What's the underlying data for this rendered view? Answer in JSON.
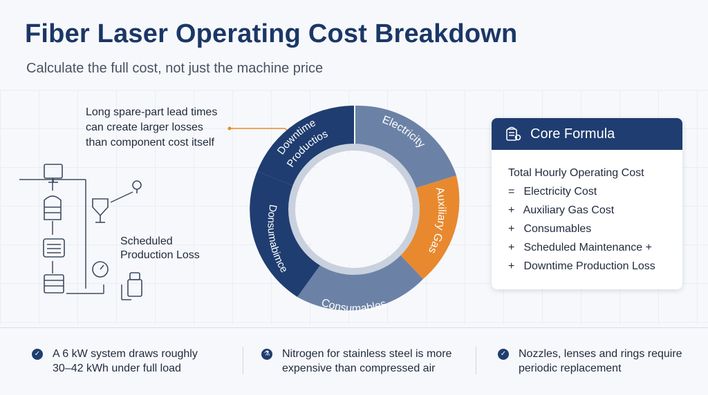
{
  "title": "Fiber Laser Operating Cost Breakdown",
  "subtitle": "Calculate the full cost, not just the machine price",
  "callout_top": {
    "line1": "Long spare-part lead times",
    "line2": "can create larger losses",
    "line3": "than component cost itself"
  },
  "callout_left": {
    "line1": "Scheduled",
    "line2": "Production Loss"
  },
  "ring": {
    "segments": [
      {
        "label": "Electricity",
        "color": "#6b82a6"
      },
      {
        "label": "Auxiliary Gas",
        "color": "#e8892f"
      },
      {
        "label": "Consumables",
        "color": "#6b82a6"
      },
      {
        "label": "Donsumabimce",
        "color": "#1f3d70"
      },
      {
        "label_line1": "Downtime",
        "label_line2": "Productios",
        "color": "#1f3d70"
      }
    ]
  },
  "formula": {
    "header": "Core Formula",
    "icon": "formula-icon",
    "lines": [
      {
        "op": "",
        "text": "Total Hourly Operating Cost"
      },
      {
        "op": "=",
        "text": "Electricity Cost"
      },
      {
        "op": "+",
        "text": "Auxiliary Gas Cost"
      },
      {
        "op": "+",
        "text": "Consumables"
      },
      {
        "op": "+",
        "text": "Scheduled Maintenance +"
      },
      {
        "op": "+",
        "text": "Downtime Production Loss"
      }
    ]
  },
  "footer": [
    {
      "icon": "check-icon",
      "line1": "A 6 kW system draws roughly",
      "line2": "30–42 kWh under full load"
    },
    {
      "icon": "gas-icon",
      "line1": "Nitrogen for stainless steel is more",
      "line2": "expensive than compressed air"
    },
    {
      "icon": "check-icon",
      "line1": "Nozzles, lenses and rings require",
      "line2": "periodic replacement"
    }
  ],
  "colors": {
    "navy": "#1f3d70",
    "slate": "#6b82a6",
    "orange": "#e8892f"
  }
}
